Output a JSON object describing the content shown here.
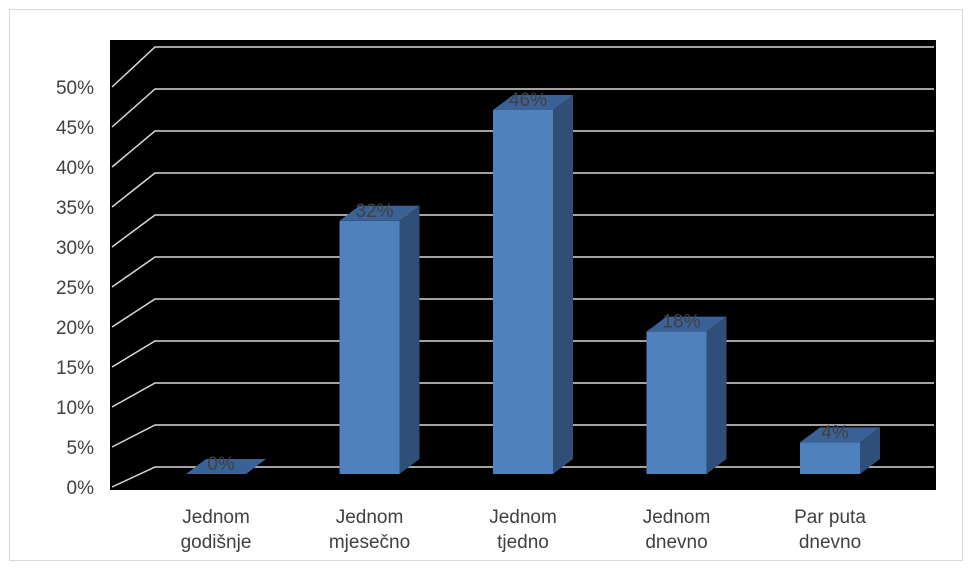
{
  "chart_data": {
    "type": "bar",
    "categories": [
      [
        "Jednom",
        "godišnje"
      ],
      [
        "Jednom",
        "mjesečno"
      ],
      [
        "Jednom",
        "tjedno"
      ],
      [
        "Jednom",
        "dnevno"
      ],
      [
        "Par puta",
        "dnevno"
      ]
    ],
    "values": [
      0,
      32,
      46,
      18,
      4
    ],
    "data_labels": [
      "0%",
      "32%",
      "46%",
      "18%",
      "4%"
    ],
    "y_ticks": [
      "0%",
      "5%",
      "10%",
      "15%",
      "20%",
      "25%",
      "30%",
      "35%",
      "40%",
      "45%",
      "50%"
    ],
    "ylim": [
      0,
      50
    ],
    "grid": true,
    "style": "3d-column",
    "colors": {
      "plot_background": "#000000",
      "bar_front": "#4f81bd",
      "bar_top": "#3b6296",
      "bar_side": "#2f4f78",
      "gridline": "#d9d9d9",
      "data_label": "#404040",
      "axis_text": "#404040"
    }
  }
}
